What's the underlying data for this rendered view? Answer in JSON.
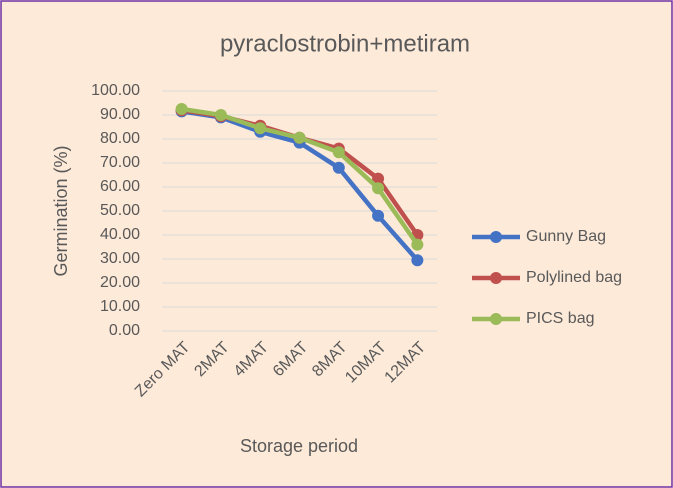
{
  "chart_data": {
    "type": "line",
    "title": "pyraclostrobin+metiram",
    "x_label": "Storage period",
    "y_label": "Germination (%)",
    "categories": [
      "Zero MAT",
      "2MAT",
      "4MAT",
      "6MAT",
      "8MAT",
      "10MAT",
      "12MAT"
    ],
    "series": [
      {
        "name": "Gunny Bag",
        "color": "#4472c4",
        "values": [
          91.5,
          89,
          83,
          78.5,
          68,
          48,
          29.5
        ]
      },
      {
        "name": "Polylined bag",
        "color": "#c0504d",
        "values": [
          92,
          89.5,
          85.5,
          80.5,
          76,
          63.5,
          40
        ]
      },
      {
        "name": "PICS bag",
        "color": "#9bbb59",
        "values": [
          92.5,
          90,
          84.5,
          80.5,
          74.5,
          59.5,
          36
        ]
      }
    ],
    "ylim": [
      0,
      100
    ],
    "yticks": [
      {
        "value": 0,
        "label": "0.00"
      },
      {
        "value": 10,
        "label": "10.00"
      },
      {
        "value": 20,
        "label": "20.00"
      },
      {
        "value": 30,
        "label": "30.00"
      },
      {
        "value": 40,
        "label": "40.00"
      },
      {
        "value": 50,
        "label": "50.00"
      },
      {
        "value": 60,
        "label": "60.00"
      },
      {
        "value": 70,
        "label": "70.00"
      },
      {
        "value": 80,
        "label": "80.00"
      },
      {
        "value": 90,
        "label": "90.00"
      },
      {
        "value": 100,
        "label": "100.00"
      }
    ],
    "grid": true,
    "legend": "right"
  }
}
